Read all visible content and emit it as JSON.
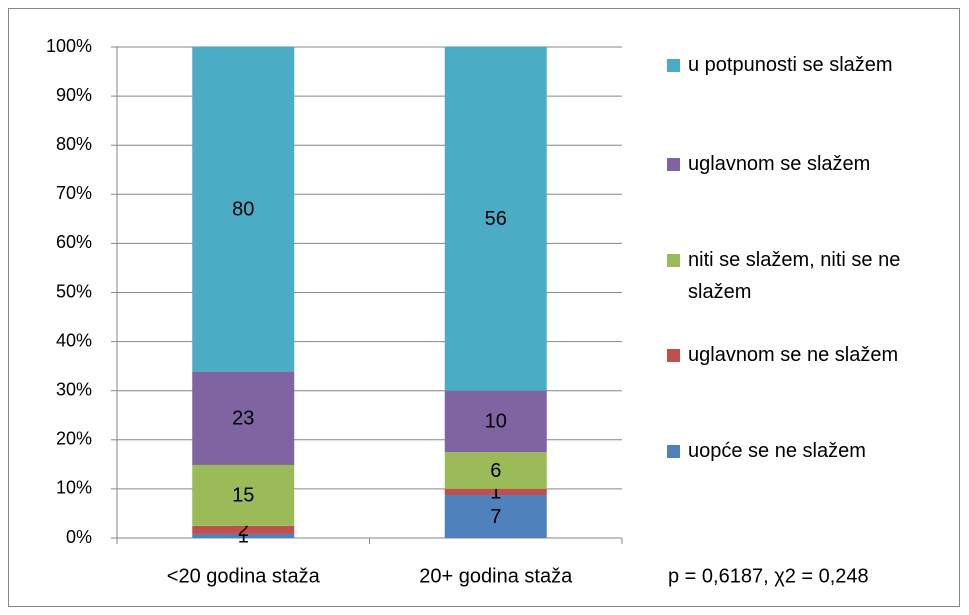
{
  "chart_data": {
    "type": "bar",
    "stacking": "percent",
    "categories": [
      "<20 godina staža",
      "20+ godina staža"
    ],
    "series": [
      {
        "name": "uopće se ne slažem",
        "color": "#4f81bd",
        "values": [
          1,
          7
        ]
      },
      {
        "name": "uglavnom se ne slažem",
        "color": "#c0504d",
        "values": [
          2,
          1
        ]
      },
      {
        "name": "niti se slažem, niti se ne slažem",
        "color": "#9bbb59",
        "values": [
          15,
          6
        ]
      },
      {
        "name": "uglavnom se slažem",
        "color": "#8064a2",
        "values": [
          23,
          10
        ]
      },
      {
        "name": "u potpunosti se slažem",
        "color": "#4bacc6",
        "values": [
          80,
          56
        ]
      }
    ],
    "ylim": [
      0,
      100
    ],
    "yticks": [
      {
        "value": 0,
        "label": "0%"
      },
      {
        "value": 10,
        "label": "10%"
      },
      {
        "value": 20,
        "label": "20%"
      },
      {
        "value": 30,
        "label": "30%"
      },
      {
        "value": 40,
        "label": "40%"
      },
      {
        "value": 50,
        "label": "50%"
      },
      {
        "value": 60,
        "label": "60%"
      },
      {
        "value": 70,
        "label": "70%"
      },
      {
        "value": 80,
        "label": "80%"
      },
      {
        "value": 90,
        "label": "90%"
      },
      {
        "value": 100,
        "label": "100%"
      }
    ],
    "grid": true,
    "legend": "right",
    "annotation": "p = 0,6187, χ2 = 0,248"
  }
}
